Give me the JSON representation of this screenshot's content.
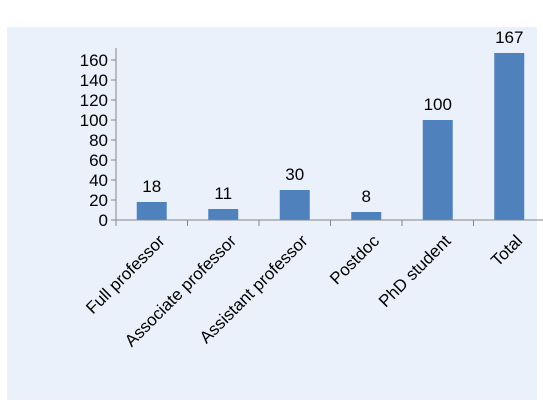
{
  "chart_data": {
    "type": "bar",
    "categories": [
      "Full professor",
      "Associate professor",
      "Assistant professor",
      "Postdoc",
      "PhD student",
      "Total"
    ],
    "values": [
      18,
      11,
      30,
      8,
      100,
      167
    ],
    "data_labels": [
      "18",
      "11",
      "30",
      "8",
      "100",
      "167"
    ],
    "yticks": [
      "0",
      "20",
      "40",
      "60",
      "80",
      "100",
      "120",
      "140",
      "160"
    ],
    "ylim": [
      0,
      170
    ],
    "grid": false,
    "legend": "none",
    "title": "",
    "xlabel": "",
    "ylabel": ""
  },
  "colors": {
    "background": "#ffffff",
    "plot_area": "#ebf1fa",
    "bar": "#4f81bd",
    "axis": "#868686",
    "text": "#000000"
  }
}
